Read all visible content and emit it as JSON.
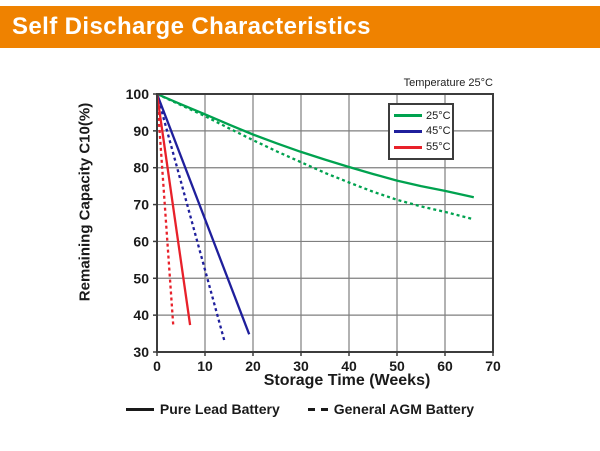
{
  "header": {
    "title": "Self Discharge Characteristics",
    "background_color": "#EF8200",
    "text_color": "#FFFFFF"
  },
  "chart_data": {
    "type": "line",
    "title": "Self Discharge Characteristics",
    "annotation": "Temperature 25°C",
    "xlabel": "Storage Time (Weeks)",
    "ylabel": "Remaining Capacity C10(%)",
    "xlim": [
      0,
      70
    ],
    "ylim": [
      30,
      100
    ],
    "xticks": [
      0,
      10,
      20,
      30,
      40,
      50,
      60,
      70
    ],
    "yticks": [
      30,
      40,
      50,
      60,
      70,
      80,
      90,
      100
    ],
    "grid": true,
    "legend_position": "top-right-inside",
    "colors": {
      "grid": "#7F7F7F",
      "axis": "#3C3C3C",
      "text": "#1A1A1A",
      "green_25c": "#00A24F",
      "blue_45c": "#1F1F9C",
      "red_55c": "#E8212A"
    },
    "temp_legend": [
      {
        "label": "25°C",
        "color": "#00A24F"
      },
      {
        "label": "45°C",
        "color": "#1F1F9C"
      },
      {
        "label": "55°C",
        "color": "#E8212A"
      }
    ],
    "style_legend": [
      {
        "label": "Pure Lead Battery",
        "dash": "solid"
      },
      {
        "label": "General AGM Battery",
        "dash": "dashed"
      }
    ],
    "series": [
      {
        "id": "25c-pure-lead",
        "name": "25°C Pure Lead Battery",
        "color": "#00A24F",
        "dash": "solid",
        "points": [
          [
            0,
            100
          ],
          [
            5,
            97.2
          ],
          [
            10,
            94.5
          ],
          [
            15,
            91.7
          ],
          [
            20,
            89
          ],
          [
            25,
            86.6
          ],
          [
            30,
            84.3
          ],
          [
            35,
            82.2
          ],
          [
            40,
            80.2
          ],
          [
            45,
            78.3
          ],
          [
            50,
            76.5
          ],
          [
            55,
            75
          ],
          [
            60,
            73.7
          ],
          [
            66,
            72
          ]
        ]
      },
      {
        "id": "25c-agm",
        "name": "25°C General AGM Battery",
        "color": "#00A24F",
        "dash": "dashed",
        "points": [
          [
            0,
            100
          ],
          [
            5,
            97
          ],
          [
            10,
            94
          ],
          [
            15,
            90.7
          ],
          [
            20,
            87.5
          ],
          [
            25,
            84.4
          ],
          [
            30,
            81.5
          ],
          [
            35,
            78.6
          ],
          [
            40,
            76
          ],
          [
            45,
            73.5
          ],
          [
            50,
            71.3
          ],
          [
            55,
            69.5
          ],
          [
            60,
            68
          ],
          [
            66,
            66
          ]
        ]
      },
      {
        "id": "45c-pure-lead",
        "name": "45°C Pure Lead Battery",
        "color": "#1F1F9C",
        "dash": "solid",
        "points": [
          [
            0,
            100
          ],
          [
            19.2,
            34.8
          ]
        ]
      },
      {
        "id": "45c-agm",
        "name": "45°C General AGM Battery",
        "color": "#1F1F9C",
        "dash": "dashed",
        "points": [
          [
            0,
            100
          ],
          [
            14.1,
            32.7
          ]
        ]
      },
      {
        "id": "55c-pure-lead",
        "name": "55°C Pure Lead Battery",
        "color": "#E8212A",
        "dash": "solid",
        "points": [
          [
            0,
            100
          ],
          [
            6.9,
            37.3
          ]
        ]
      },
      {
        "id": "55c-agm",
        "name": "55°C General AGM Battery",
        "color": "#E8212A",
        "dash": "dashed",
        "points": [
          [
            0,
            100
          ],
          [
            3.4,
            37
          ]
        ]
      }
    ]
  }
}
